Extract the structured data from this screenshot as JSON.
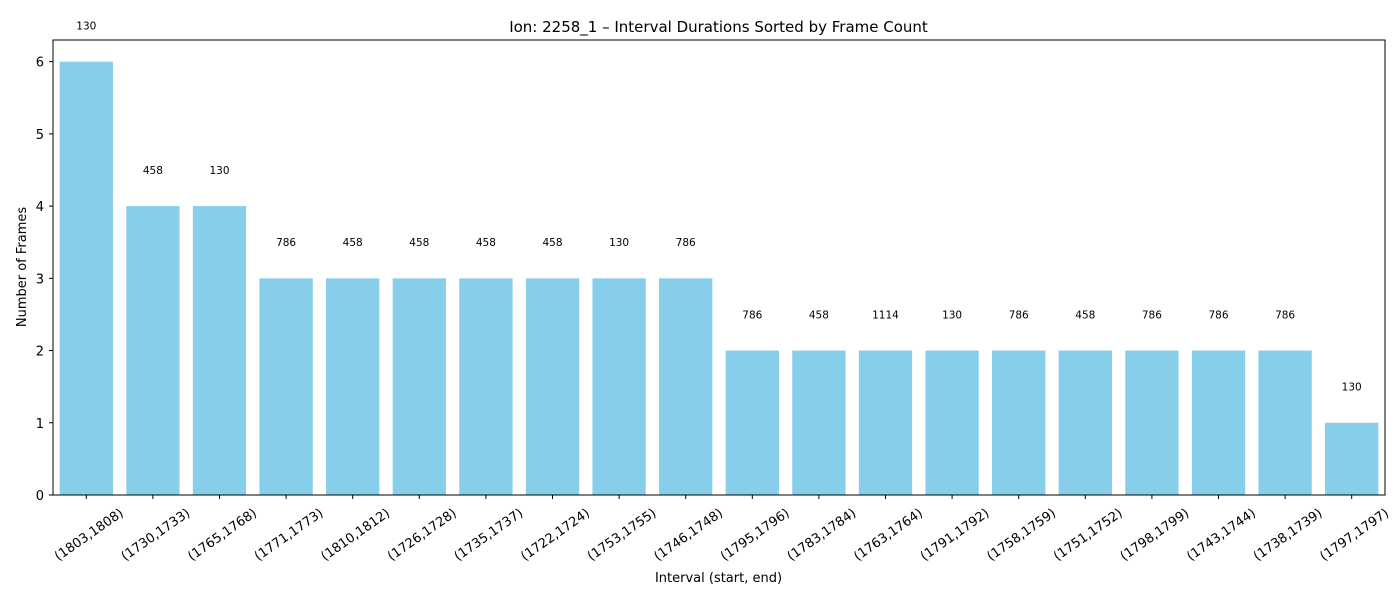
{
  "chart_data": {
    "type": "bar",
    "title": "Ion: 2258_1 – Interval Durations Sorted by Frame Count",
    "xlabel": "Interval (start, end)",
    "ylabel": "Number of Frames",
    "ylim": [
      0,
      6.3
    ],
    "yticks": [
      0,
      1,
      2,
      3,
      4,
      5,
      6
    ],
    "grid": false,
    "bar_color": "#87ceeb",
    "categories": [
      "(1803,1808)",
      "(1730,1733)",
      "(1765,1768)",
      "(1771,1773)",
      "(1810,1812)",
      "(1726,1728)",
      "(1735,1737)",
      "(1722,1724)",
      "(1753,1755)",
      "(1746,1748)",
      "(1795,1796)",
      "(1783,1784)",
      "(1763,1764)",
      "(1791,1792)",
      "(1758,1759)",
      "(1751,1752)",
      "(1798,1799)",
      "(1743,1744)",
      "(1738,1739)",
      "(1797,1797)"
    ],
    "values": [
      6,
      4,
      4,
      3,
      3,
      3,
      3,
      3,
      3,
      3,
      2,
      2,
      2,
      2,
      2,
      2,
      2,
      2,
      2,
      1
    ],
    "data_labels": [
      "130",
      "458",
      "130",
      "786",
      "458",
      "458",
      "458",
      "458",
      "130",
      "786",
      "786",
      "458",
      "1114",
      "130",
      "786",
      "458",
      "786",
      "786",
      "786",
      "130"
    ]
  }
}
